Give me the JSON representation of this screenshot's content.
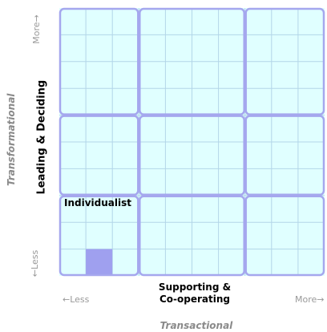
{
  "chart_data": {
    "type": "heatmap",
    "title": "",
    "grid": true,
    "grid_cells": {
      "columns": 10,
      "rows": 10
    },
    "major_cells": {
      "columns": 3,
      "rows": 3
    },
    "x_axis": {
      "label": "Supporting & Co-operating",
      "label_line1": "Supporting &",
      "label_line2": "Co-operating",
      "min_label": "←Less",
      "max_label": "More→",
      "category": "Transactional"
    },
    "y_axis": {
      "label": "Leading & Deciding",
      "min_label": "←Less",
      "max_label": "More→",
      "category": "Transformational"
    },
    "quadrant_label": "Individualist",
    "highlight": {
      "column": 2,
      "row": 1
    }
  },
  "colors": {
    "background_fill": "#e0ffff",
    "minor_grid": "#b3d6e8",
    "major_grid": "#a5a7ee",
    "highlight": "#9fa0ef",
    "muted_text": "#999999"
  }
}
